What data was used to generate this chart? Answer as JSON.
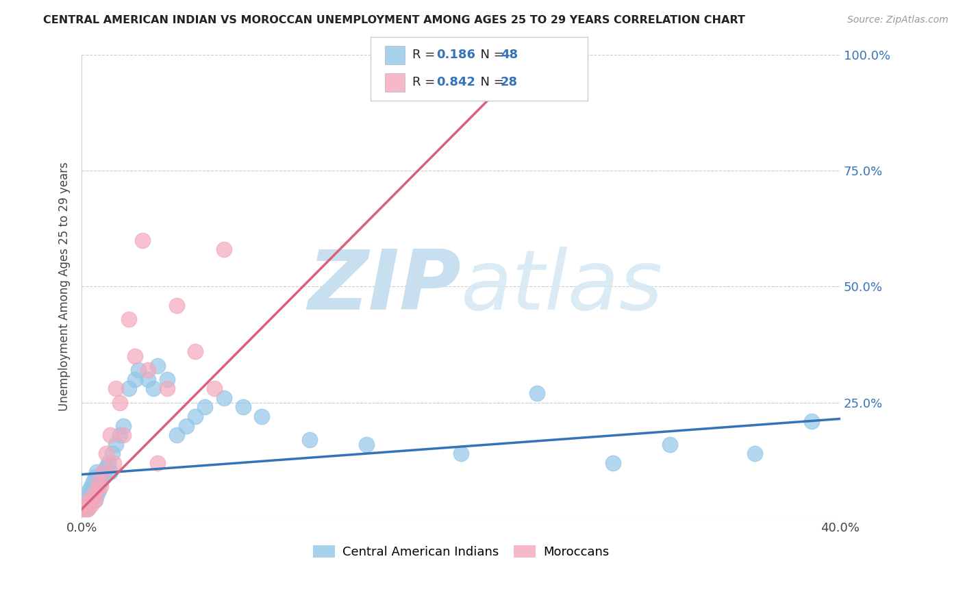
{
  "title": "CENTRAL AMERICAN INDIAN VS MOROCCAN UNEMPLOYMENT AMONG AGES 25 TO 29 YEARS CORRELATION CHART",
  "source": "Source: ZipAtlas.com",
  "ylabel": "Unemployment Among Ages 25 to 29 years",
  "xlim": [
    0.0,
    0.4
  ],
  "ylim": [
    0.0,
    1.0
  ],
  "xticks": [
    0.0,
    0.1,
    0.2,
    0.3,
    0.4
  ],
  "xtick_labels": [
    "0.0%",
    "",
    "",
    "",
    "40.0%"
  ],
  "yticks": [
    0.0,
    0.25,
    0.5,
    0.75,
    1.0
  ],
  "ytick_right_labels": [
    "",
    "25.0%",
    "50.0%",
    "75.0%",
    "100.0%"
  ],
  "blue_color": "#93c6e8",
  "pink_color": "#f4a8bc",
  "blue_line_color": "#3573b9",
  "pink_line_color": "#d95f7a",
  "r_n_color": "#3573b9",
  "watermark_zip": "ZIP",
  "watermark_atlas": "atlas",
  "watermark_color": "#c8dff0",
  "blue_points_x": [
    0.001,
    0.002,
    0.002,
    0.003,
    0.003,
    0.004,
    0.004,
    0.005,
    0.005,
    0.006,
    0.006,
    0.007,
    0.007,
    0.008,
    0.008,
    0.009,
    0.01,
    0.011,
    0.012,
    0.013,
    0.014,
    0.015,
    0.016,
    0.018,
    0.02,
    0.022,
    0.025,
    0.028,
    0.03,
    0.035,
    0.038,
    0.04,
    0.045,
    0.05,
    0.055,
    0.06,
    0.065,
    0.075,
    0.085,
    0.095,
    0.12,
    0.15,
    0.2,
    0.24,
    0.28,
    0.31,
    0.355,
    0.385
  ],
  "blue_points_y": [
    0.02,
    0.03,
    0.04,
    0.02,
    0.05,
    0.03,
    0.06,
    0.04,
    0.07,
    0.05,
    0.08,
    0.04,
    0.09,
    0.05,
    0.1,
    0.06,
    0.08,
    0.1,
    0.09,
    0.11,
    0.12,
    0.1,
    0.14,
    0.16,
    0.18,
    0.2,
    0.28,
    0.3,
    0.32,
    0.3,
    0.28,
    0.33,
    0.3,
    0.18,
    0.2,
    0.22,
    0.24,
    0.26,
    0.24,
    0.22,
    0.17,
    0.16,
    0.14,
    0.27,
    0.12,
    0.16,
    0.14,
    0.21
  ],
  "pink_points_x": [
    0.001,
    0.002,
    0.003,
    0.004,
    0.005,
    0.006,
    0.007,
    0.008,
    0.009,
    0.01,
    0.011,
    0.013,
    0.015,
    0.017,
    0.018,
    0.02,
    0.022,
    0.025,
    0.028,
    0.032,
    0.035,
    0.04,
    0.045,
    0.05,
    0.06,
    0.07,
    0.075,
    0.23
  ],
  "pink_points_y": [
    0.02,
    0.03,
    0.02,
    0.04,
    0.03,
    0.05,
    0.04,
    0.06,
    0.08,
    0.07,
    0.1,
    0.14,
    0.18,
    0.12,
    0.28,
    0.25,
    0.18,
    0.43,
    0.35,
    0.6,
    0.32,
    0.12,
    0.28,
    0.46,
    0.36,
    0.28,
    0.58,
    1.0
  ],
  "blue_line_x": [
    0.0,
    0.4
  ],
  "blue_line_y": [
    0.095,
    0.215
  ],
  "pink_line_x": [
    0.0,
    0.238
  ],
  "pink_line_y": [
    0.02,
    1.0
  ],
  "figsize": [
    14.06,
    8.92
  ],
  "dpi": 100
}
